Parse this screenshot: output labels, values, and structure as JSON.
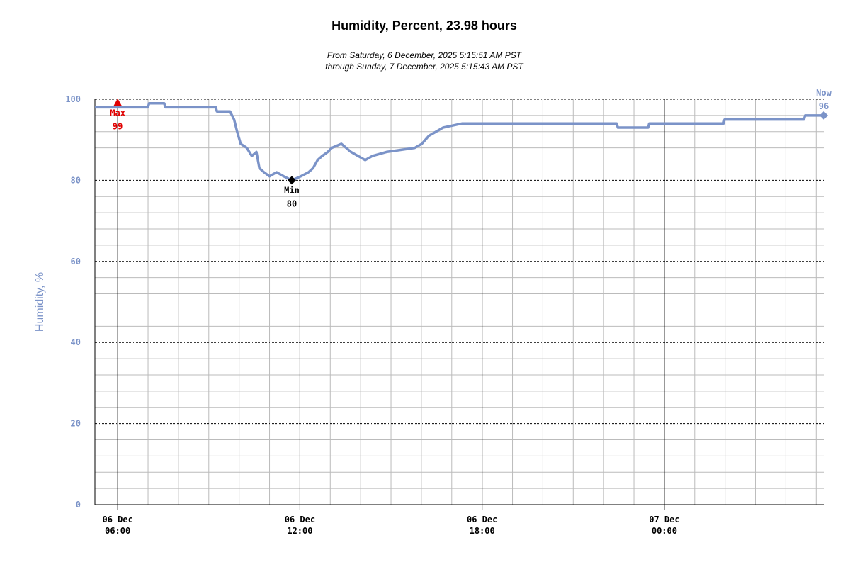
{
  "chart_data": {
    "type": "line",
    "title": "Humidity, Percent, 23.98 hours",
    "subtitle": [
      "From Saturday, 6 December, 2025 5:15:51 AM PST",
      "through Sunday, 7 December, 2025 5:15:43 AM PST"
    ],
    "y_label": "Humidity, %",
    "color": "#7b93c8",
    "x": [
      "06 Dec 05:15",
      "06 Dec 07:00",
      "06 Dec 07:02",
      "06 Dec 07:32",
      "06 Dec 07:34",
      "06 Dec 09:14",
      "06 Dec 09:16",
      "06 Dec 09:42",
      "06 Dec 09:50",
      "06 Dec 09:56",
      "06 Dec 10:03",
      "06 Dec 10:15",
      "06 Dec 10:25",
      "06 Dec 10:34",
      "06 Dec 10:40",
      "06 Dec 10:49",
      "06 Dec 11:00",
      "06 Dec 11:14",
      "06 Dec 11:28",
      "06 Dec 11:44",
      "06 Dec 12:02",
      "06 Dec 12:17",
      "06 Dec 12:26",
      "06 Dec 12:35",
      "06 Dec 12:44",
      "06 Dec 12:55",
      "06 Dec 13:03",
      "06 Dec 13:22",
      "06 Dec 13:41",
      "06 Dec 13:55",
      "06 Dec 14:09",
      "06 Dec 14:23",
      "06 Dec 14:51",
      "06 Dec 15:47",
      "06 Dec 16:01",
      "06 Dec 16:08",
      "06 Dec 16:15",
      "06 Dec 16:29",
      "06 Dec 16:43",
      "06 Dec 17:20",
      "06 Dec 22:26",
      "06 Dec 22:28",
      "06 Dec 23:28",
      "06 Dec 23:30",
      "07 Dec 01:57",
      "07 Dec 01:59",
      "07 Dec 04:36",
      "07 Dec 04:38",
      "07 Dec 05:15"
    ],
    "values": [
      98,
      98,
      99,
      99,
      98,
      98,
      97,
      97,
      95,
      92,
      89,
      88,
      86,
      87,
      83,
      82,
      81,
      82,
      81,
      80,
      81,
      82,
      83,
      85,
      86,
      87,
      88,
      89,
      87,
      86,
      85,
      86,
      87,
      88,
      89,
      90,
      91,
      92,
      93,
      94,
      94,
      93,
      93,
      94,
      94,
      95,
      95,
      96,
      96
    ],
    "xlim": [
      "06 Dec 05:15",
      "07 Dec 05:15"
    ],
    "xticks": [
      {
        "value": "06 Dec 06:00",
        "label": [
          "06 Dec",
          "06:00"
        ]
      },
      {
        "value": "06 Dec 12:00",
        "label": [
          "06 Dec",
          "12:00"
        ]
      },
      {
        "value": "06 Dec 18:00",
        "label": [
          "06 Dec",
          "18:00"
        ]
      },
      {
        "value": "07 Dec 00:00",
        "label": [
          "07 Dec",
          "00:00"
        ]
      }
    ],
    "xminorticks": [
      "06 Dec 07:00",
      "06 Dec 08:00",
      "06 Dec 09:00",
      "06 Dec 10:00",
      "06 Dec 11:00",
      "06 Dec 13:00",
      "06 Dec 14:00",
      "06 Dec 15:00",
      "06 Dec 16:00",
      "06 Dec 17:00",
      "06 Dec 19:00",
      "06 Dec 20:00",
      "06 Dec 21:00",
      "06 Dec 22:00",
      "06 Dec 23:00",
      "07 Dec 01:00",
      "07 Dec 02:00",
      "07 Dec 03:00",
      "07 Dec 04:00",
      "07 Dec 05:00"
    ],
    "ylim": [
      0,
      100
    ],
    "yticks": [
      0,
      20,
      40,
      60,
      80,
      100
    ],
    "yminorticks": [
      4,
      8,
      12,
      16,
      24,
      28,
      32,
      36,
      44,
      48,
      52,
      56,
      64,
      68,
      72,
      76,
      84,
      88,
      92,
      96
    ],
    "grid": true,
    "annotations": [
      {
        "label": "Max",
        "value": 99,
        "x": "06 Dec 06:00",
        "color": "#e00000",
        "marker": "triangle"
      },
      {
        "label": "Min",
        "value": 80,
        "x": "06 Dec 11:44",
        "color": "#000000",
        "marker": "diamond"
      },
      {
        "label": "Now",
        "value": 96,
        "x": "07 Dec 05:15",
        "color": "#7b93c8",
        "marker": "diamond"
      }
    ]
  }
}
